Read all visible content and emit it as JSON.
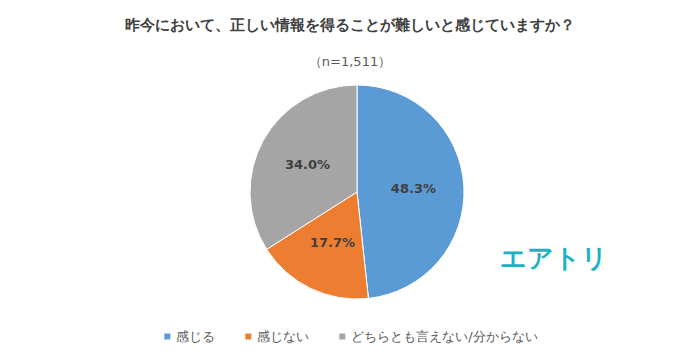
{
  "chart_data": {
    "type": "pie",
    "title": "昨今において、正しい情報を得ることが難しいと感じていますか？",
    "subtitle": "（n=1,511）",
    "categories": [
      "感じる",
      "感じない",
      "どちらとも言えない/分からない"
    ],
    "values": [
      48.3,
      17.7,
      34.0
    ],
    "value_labels": [
      "48.3%",
      "17.7%",
      "34.0%"
    ],
    "colors": [
      "#5B9BD5",
      "#ED7D31",
      "#A5A5A5"
    ],
    "data_labels": true,
    "legend": "bottom",
    "annotations": [
      "エアトリ"
    ]
  }
}
